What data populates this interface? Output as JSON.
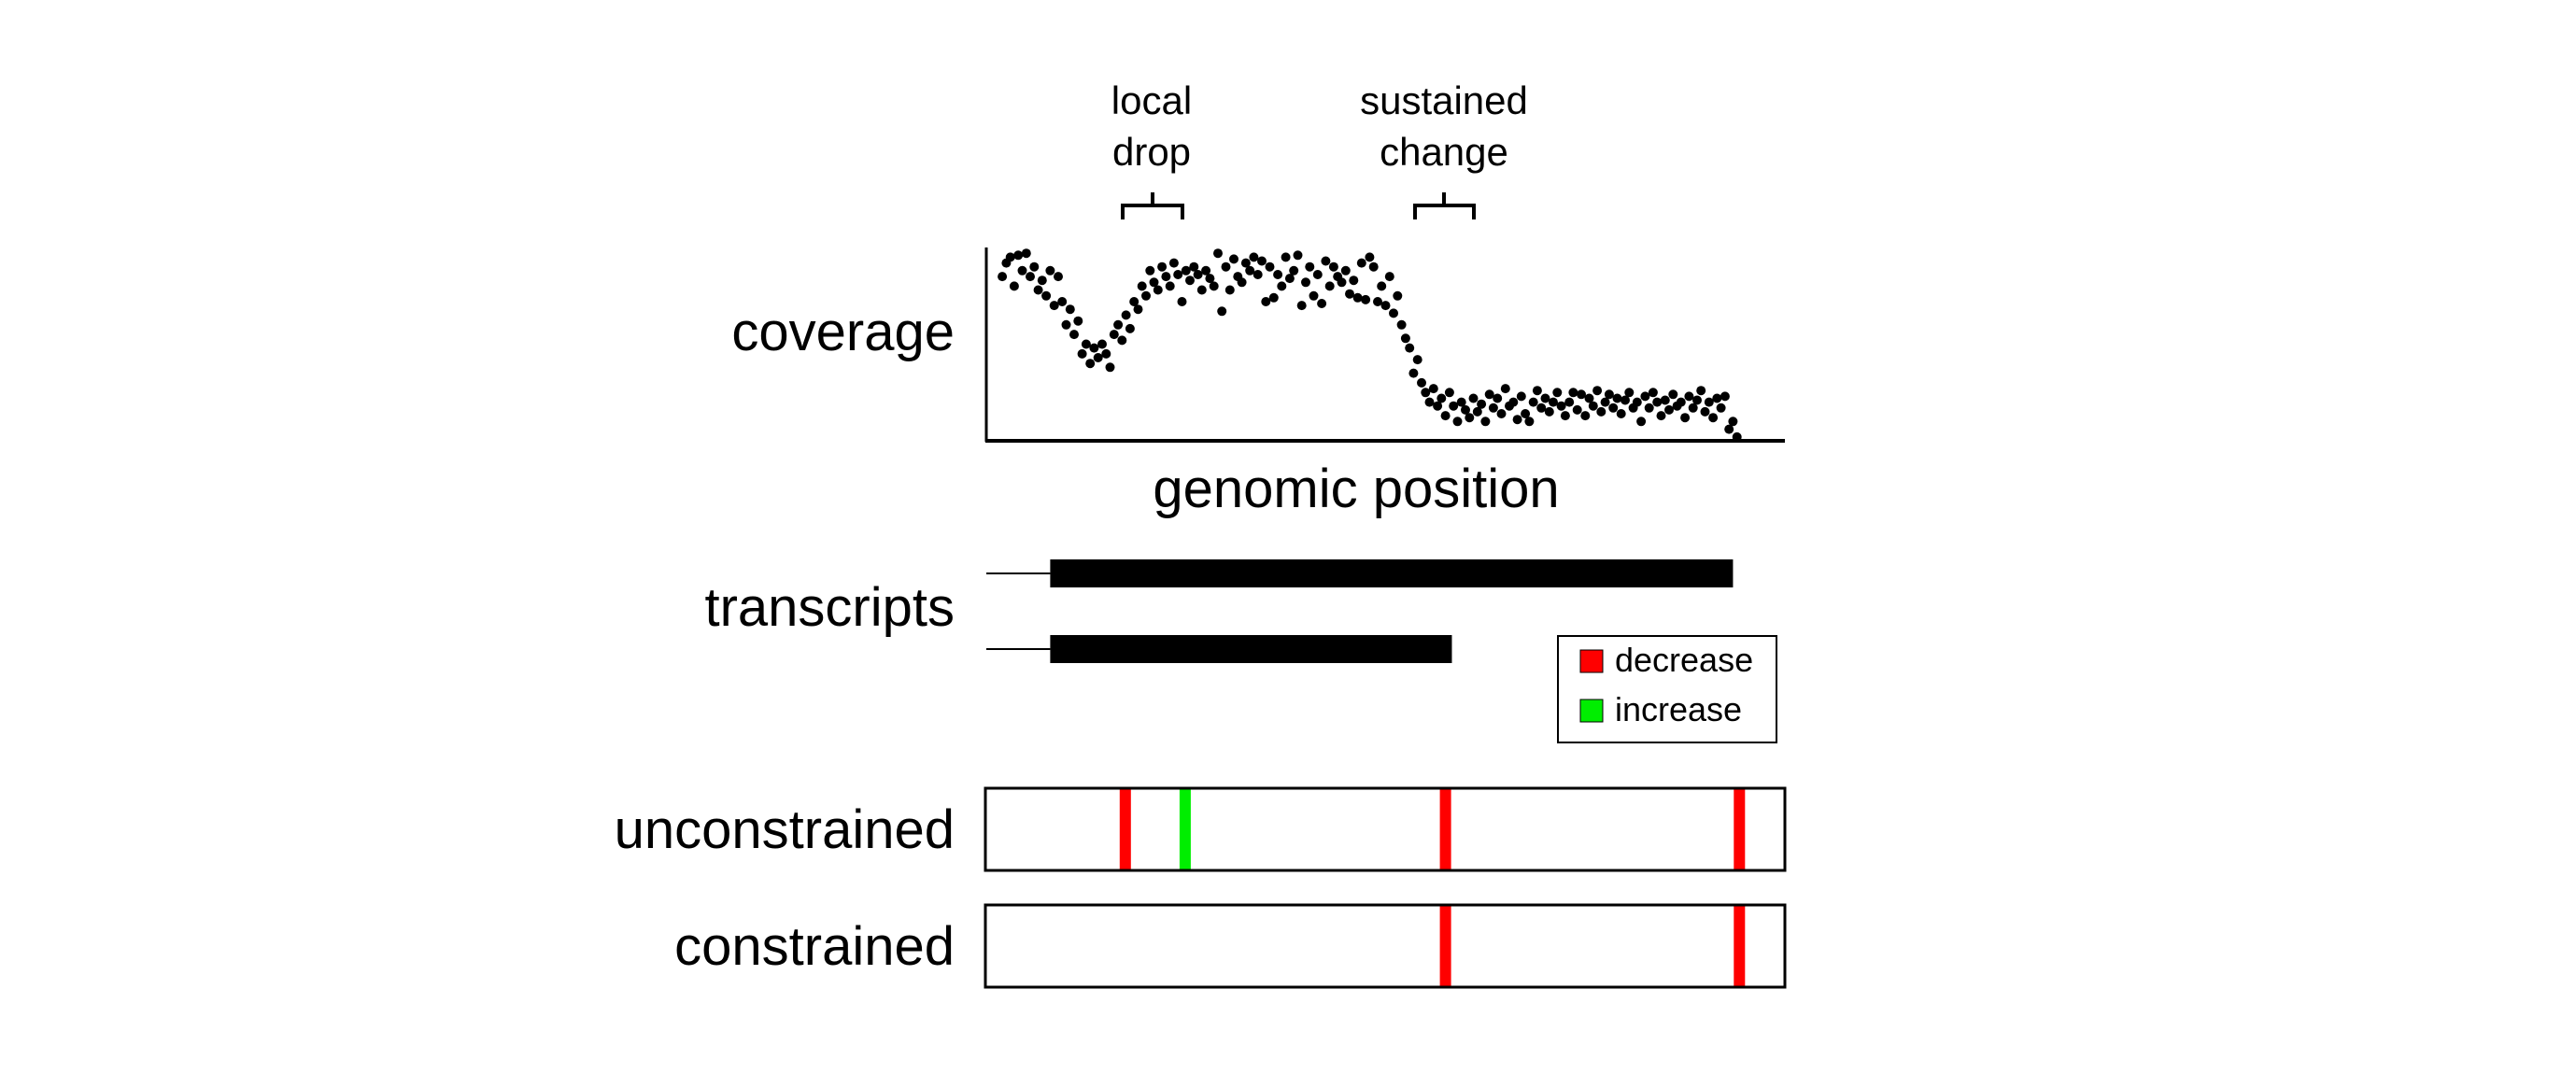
{
  "annotations": {
    "local_drop": [
      "local",
      "drop"
    ],
    "sustained_change": [
      "sustained",
      "change"
    ]
  },
  "row_labels": {
    "coverage": "coverage",
    "genomic_position": "genomic position",
    "transcripts": "transcripts",
    "unconstrained": "unconstrained",
    "constrained": "constrained"
  },
  "legend": {
    "items": [
      {
        "label": "decrease",
        "color": "#ff0000"
      },
      {
        "label": "increase",
        "color": "#00ee00"
      }
    ]
  },
  "colors": {
    "decrease": "#ff0000",
    "increase": "#00ee00",
    "ink": "#000000"
  },
  "coverage_profile": {
    "description_levels": {
      "high": 0.85,
      "drop_min": 0.4,
      "low": 0.2
    },
    "points": [
      [
        0.02,
        0.85
      ],
      [
        0.025,
        0.92
      ],
      [
        0.03,
        0.95
      ],
      [
        0.035,
        0.8
      ],
      [
        0.04,
        0.96
      ],
      [
        0.045,
        0.88
      ],
      [
        0.05,
        0.97
      ],
      [
        0.055,
        0.85
      ],
      [
        0.06,
        0.9
      ],
      [
        0.065,
        0.78
      ],
      [
        0.07,
        0.83
      ],
      [
        0.075,
        0.75
      ],
      [
        0.08,
        0.88
      ],
      [
        0.085,
        0.7
      ],
      [
        0.09,
        0.85
      ],
      [
        0.095,
        0.72
      ],
      [
        0.1,
        0.6
      ],
      [
        0.105,
        0.68
      ],
      [
        0.11,
        0.55
      ],
      [
        0.115,
        0.62
      ],
      [
        0.12,
        0.45
      ],
      [
        0.125,
        0.5
      ],
      [
        0.13,
        0.4
      ],
      [
        0.135,
        0.48
      ],
      [
        0.14,
        0.43
      ],
      [
        0.145,
        0.5
      ],
      [
        0.15,
        0.45
      ],
      [
        0.155,
        0.38
      ],
      [
        0.16,
        0.55
      ],
      [
        0.165,
        0.6
      ],
      [
        0.17,
        0.52
      ],
      [
        0.175,
        0.65
      ],
      [
        0.18,
        0.58
      ],
      [
        0.185,
        0.72
      ],
      [
        0.19,
        0.68
      ],
      [
        0.195,
        0.8
      ],
      [
        0.2,
        0.75
      ],
      [
        0.205,
        0.88
      ],
      [
        0.21,
        0.82
      ],
      [
        0.215,
        0.78
      ],
      [
        0.22,
        0.9
      ],
      [
        0.225,
        0.85
      ],
      [
        0.23,
        0.8
      ],
      [
        0.235,
        0.92
      ],
      [
        0.24,
        0.86
      ],
      [
        0.245,
        0.72
      ],
      [
        0.25,
        0.88
      ],
      [
        0.255,
        0.83
      ],
      [
        0.26,
        0.9
      ],
      [
        0.265,
        0.86
      ],
      [
        0.27,
        0.78
      ],
      [
        0.275,
        0.88
      ],
      [
        0.28,
        0.84
      ],
      [
        0.285,
        0.8
      ],
      [
        0.29,
        0.97
      ],
      [
        0.295,
        0.67
      ],
      [
        0.3,
        0.9
      ],
      [
        0.305,
        0.78
      ],
      [
        0.31,
        0.94
      ],
      [
        0.315,
        0.85
      ],
      [
        0.32,
        0.82
      ],
      [
        0.325,
        0.92
      ],
      [
        0.33,
        0.88
      ],
      [
        0.335,
        0.95
      ],
      [
        0.34,
        0.86
      ],
      [
        0.345,
        0.93
      ],
      [
        0.35,
        0.72
      ],
      [
        0.355,
        0.9
      ],
      [
        0.36,
        0.74
      ],
      [
        0.365,
        0.86
      ],
      [
        0.37,
        0.8
      ],
      [
        0.375,
        0.95
      ],
      [
        0.38,
        0.84
      ],
      [
        0.385,
        0.88
      ],
      [
        0.39,
        0.96
      ],
      [
        0.395,
        0.7
      ],
      [
        0.4,
        0.82
      ],
      [
        0.405,
        0.9
      ],
      [
        0.41,
        0.75
      ],
      [
        0.415,
        0.86
      ],
      [
        0.42,
        0.71
      ],
      [
        0.425,
        0.93
      ],
      [
        0.43,
        0.8
      ],
      [
        0.435,
        0.9
      ],
      [
        0.44,
        0.85
      ],
      [
        0.445,
        0.82
      ],
      [
        0.45,
        0.88
      ],
      [
        0.455,
        0.76
      ],
      [
        0.46,
        0.83
      ],
      [
        0.465,
        0.74
      ],
      [
        0.47,
        0.92
      ],
      [
        0.475,
        0.73
      ],
      [
        0.48,
        0.95
      ],
      [
        0.485,
        0.9
      ],
      [
        0.49,
        0.72
      ],
      [
        0.495,
        0.8
      ],
      [
        0.5,
        0.7
      ],
      [
        0.505,
        0.85
      ],
      [
        0.51,
        0.66
      ],
      [
        0.515,
        0.75
      ],
      [
        0.52,
        0.6
      ],
      [
        0.525,
        0.53
      ],
      [
        0.53,
        0.48
      ],
      [
        0.535,
        0.35
      ],
      [
        0.54,
        0.42
      ],
      [
        0.545,
        0.3
      ],
      [
        0.55,
        0.25
      ],
      [
        0.555,
        0.2
      ],
      [
        0.56,
        0.27
      ],
      [
        0.565,
        0.18
      ],
      [
        0.57,
        0.22
      ],
      [
        0.575,
        0.13
      ],
      [
        0.58,
        0.25
      ],
      [
        0.585,
        0.18
      ],
      [
        0.59,
        0.1
      ],
      [
        0.595,
        0.2
      ],
      [
        0.6,
        0.16
      ],
      [
        0.605,
        0.12
      ],
      [
        0.61,
        0.22
      ],
      [
        0.615,
        0.15
      ],
      [
        0.62,
        0.19
      ],
      [
        0.625,
        0.1
      ],
      [
        0.63,
        0.24
      ],
      [
        0.635,
        0.17
      ],
      [
        0.64,
        0.22
      ],
      [
        0.645,
        0.14
      ],
      [
        0.65,
        0.27
      ],
      [
        0.655,
        0.18
      ],
      [
        0.66,
        0.2
      ],
      [
        0.665,
        0.11
      ],
      [
        0.67,
        0.23
      ],
      [
        0.675,
        0.14
      ],
      [
        0.68,
        0.1
      ],
      [
        0.685,
        0.2
      ],
      [
        0.69,
        0.26
      ],
      [
        0.695,
        0.17
      ],
      [
        0.7,
        0.22
      ],
      [
        0.705,
        0.15
      ],
      [
        0.71,
        0.2
      ],
      [
        0.715,
        0.25
      ],
      [
        0.72,
        0.18
      ],
      [
        0.725,
        0.13
      ],
      [
        0.73,
        0.2
      ],
      [
        0.735,
        0.25
      ],
      [
        0.74,
        0.16
      ],
      [
        0.745,
        0.24
      ],
      [
        0.75,
        0.13
      ],
      [
        0.755,
        0.22
      ],
      [
        0.76,
        0.18
      ],
      [
        0.765,
        0.26
      ],
      [
        0.77,
        0.15
      ],
      [
        0.775,
        0.2
      ],
      [
        0.78,
        0.24
      ],
      [
        0.785,
        0.17
      ],
      [
        0.79,
        0.22
      ],
      [
        0.795,
        0.14
      ],
      [
        0.8,
        0.21
      ],
      [
        0.805,
        0.25
      ],
      [
        0.81,
        0.17
      ],
      [
        0.815,
        0.2
      ],
      [
        0.82,
        0.1
      ],
      [
        0.825,
        0.23
      ],
      [
        0.83,
        0.17
      ],
      [
        0.835,
        0.25
      ],
      [
        0.84,
        0.2
      ],
      [
        0.845,
        0.13
      ],
      [
        0.85,
        0.21
      ],
      [
        0.855,
        0.16
      ],
      [
        0.86,
        0.24
      ],
      [
        0.865,
        0.18
      ],
      [
        0.87,
        0.2
      ],
      [
        0.875,
        0.12
      ],
      [
        0.88,
        0.23
      ],
      [
        0.885,
        0.17
      ],
      [
        0.89,
        0.21
      ],
      [
        0.895,
        0.26
      ],
      [
        0.9,
        0.15
      ],
      [
        0.905,
        0.2
      ],
      [
        0.91,
        0.12
      ],
      [
        0.915,
        0.22
      ],
      [
        0.92,
        0.17
      ],
      [
        0.925,
        0.23
      ],
      [
        0.93,
        0.06
      ],
      [
        0.935,
        0.1
      ],
      [
        0.94,
        0.02
      ]
    ]
  },
  "transcripts": [
    {
      "start": 0.08,
      "end": 0.935
    },
    {
      "start": 0.08,
      "end": 0.583
    }
  ],
  "tracks": {
    "unconstrained": [
      {
        "pos": 0.174,
        "type": "decrease"
      },
      {
        "pos": 0.249,
        "type": "increase"
      },
      {
        "pos": 0.575,
        "type": "decrease"
      },
      {
        "pos": 0.943,
        "type": "decrease"
      }
    ],
    "constrained": [
      {
        "pos": 0.575,
        "type": "decrease"
      },
      {
        "pos": 0.943,
        "type": "decrease"
      }
    ]
  }
}
